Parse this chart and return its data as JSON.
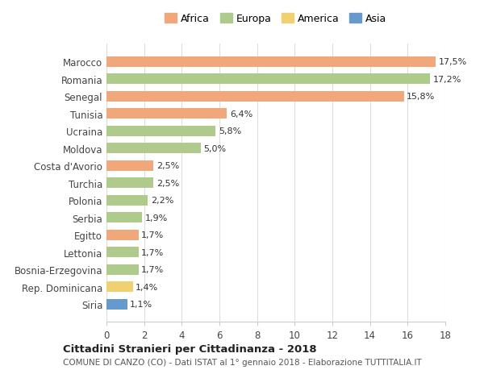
{
  "countries": [
    "Marocco",
    "Romania",
    "Senegal",
    "Tunisia",
    "Ucraina",
    "Moldova",
    "Costa d'Avorio",
    "Turchia",
    "Polonia",
    "Serbia",
    "Egitto",
    "Lettonia",
    "Bosnia-Erzegovina",
    "Rep. Dominicana",
    "Siria"
  ],
  "values": [
    17.5,
    17.2,
    15.8,
    6.4,
    5.8,
    5.0,
    2.5,
    2.5,
    2.2,
    1.9,
    1.7,
    1.7,
    1.7,
    1.4,
    1.1
  ],
  "labels": [
    "17,5%",
    "17,2%",
    "15,8%",
    "6,4%",
    "5,8%",
    "5,0%",
    "2,5%",
    "2,5%",
    "2,2%",
    "1,9%",
    "1,7%",
    "1,7%",
    "1,7%",
    "1,4%",
    "1,1%"
  ],
  "continents": [
    "Africa",
    "Europa",
    "Africa",
    "Africa",
    "Europa",
    "Europa",
    "Africa",
    "Europa",
    "Europa",
    "Europa",
    "Africa",
    "Europa",
    "Europa",
    "America",
    "Asia"
  ],
  "continent_colors": {
    "Africa": "#F0A87A",
    "Europa": "#AECB8C",
    "America": "#F0D070",
    "Asia": "#6699CC"
  },
  "legend_order": [
    "Africa",
    "Europa",
    "America",
    "Asia"
  ],
  "title": "Cittadini Stranieri per Cittadinanza - 2018",
  "subtitle": "COMUNE DI CANZO (CO) - Dati ISTAT al 1° gennaio 2018 - Elaborazione TUTTITALIA.IT",
  "xlim": [
    0,
    18
  ],
  "xticks": [
    0,
    2,
    4,
    6,
    8,
    10,
    12,
    14,
    16,
    18
  ],
  "grid_color": "#dddddd",
  "background_color": "#ffffff",
  "bar_height": 0.6
}
